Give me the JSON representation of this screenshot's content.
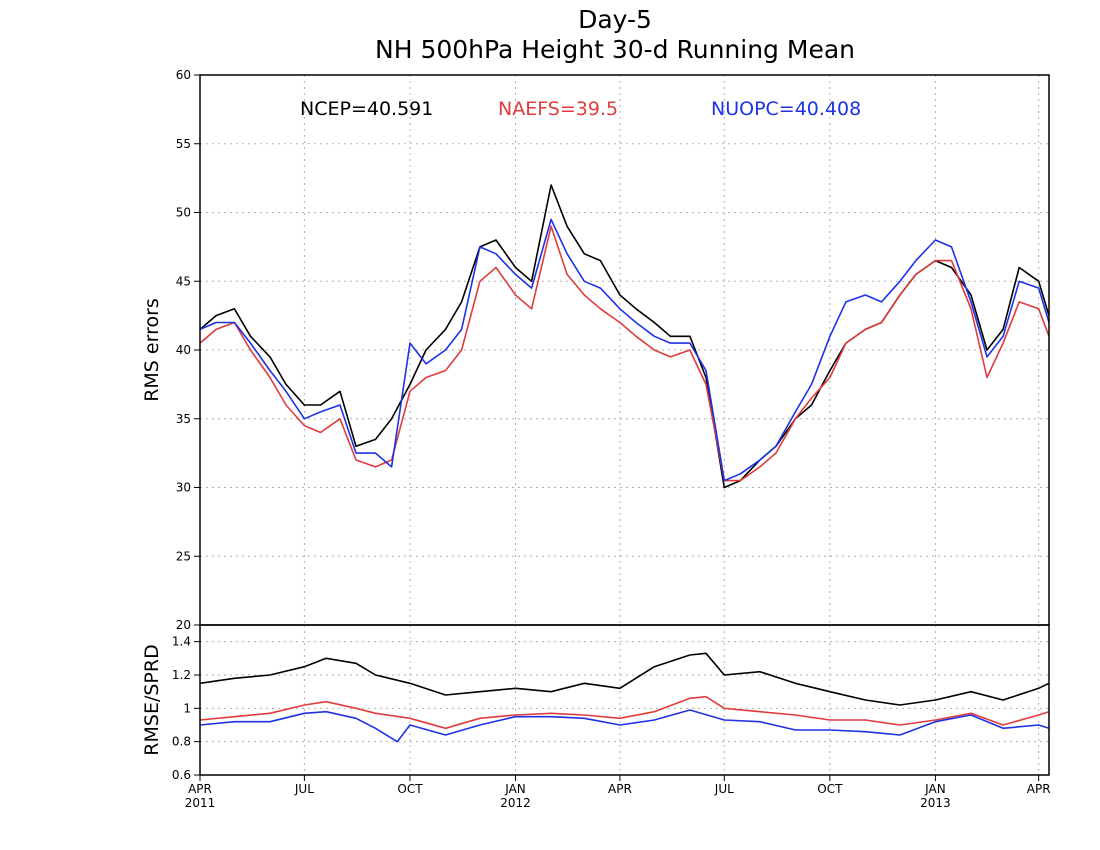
{
  "chart_data": [
    {
      "type": "line",
      "title": "Day-5",
      "subtitle": "NH 500hPa Height 30-d Running Mean",
      "ylabel": "RMS errors",
      "ylim": [
        20,
        60
      ],
      "yticks": [
        20,
        25,
        30,
        35,
        40,
        45,
        50,
        55,
        60
      ],
      "ytick_labels": [
        "20",
        "25",
        "30",
        "35",
        "40",
        "45",
        "50",
        "55",
        "60"
      ],
      "grid": true,
      "xlim": [
        "2011-04-01",
        "2013-04-10"
      ],
      "legend": [
        {
          "text": "NCEP=40.591",
          "color": "#000000"
        },
        {
          "text": "NAEFS=39.5",
          "color": "#e03c3c"
        },
        {
          "text": "NUOPC=40.408",
          "color": "#1e32e6"
        }
      ],
      "series": [
        {
          "name": "NCEP",
          "color": "#000000",
          "x": [
            "2011-04-01",
            "2011-04-15",
            "2011-05-01",
            "2011-05-15",
            "2011-06-01",
            "2011-06-15",
            "2011-07-01",
            "2011-07-15",
            "2011-08-01",
            "2011-08-15",
            "2011-09-01",
            "2011-09-15",
            "2011-10-01",
            "2011-10-15",
            "2011-11-01",
            "2011-11-15",
            "2011-12-01",
            "2011-12-15",
            "2012-01-01",
            "2012-01-15",
            "2012-02-01",
            "2012-02-15",
            "2012-03-01",
            "2012-03-15",
            "2012-04-01",
            "2012-04-15",
            "2012-05-01",
            "2012-05-15",
            "2012-06-01",
            "2012-06-15",
            "2012-07-01",
            "2012-07-15",
            "2012-08-01",
            "2012-08-15",
            "2012-09-01",
            "2012-09-15",
            "2012-10-01",
            "2012-10-15",
            "2012-11-01",
            "2012-11-15",
            "2012-12-01",
            "2012-12-15",
            "2013-01-01",
            "2013-01-15",
            "2013-02-01",
            "2013-02-15",
            "2013-03-01",
            "2013-03-15",
            "2013-04-01",
            "2013-04-10"
          ],
          "values": [
            41.5,
            42.5,
            43.0,
            41.0,
            39.5,
            37.5,
            36.0,
            36.0,
            37.0,
            33.0,
            33.5,
            35.0,
            37.5,
            40.0,
            41.5,
            43.5,
            47.5,
            48.0,
            46.0,
            45.0,
            52.0,
            49.0,
            47.0,
            46.5,
            44.0,
            43.0,
            42.0,
            41.0,
            41.0,
            38.0,
            30.0,
            30.5,
            32.0,
            33.0,
            35.0,
            36.0,
            38.5,
            40.5,
            41.5,
            42.0,
            44.0,
            45.5,
            46.5,
            46.0,
            44.0,
            40.0,
            41.5,
            46.0,
            45.0,
            42.5
          ]
        },
        {
          "name": "NAEFS",
          "color": "#e03c3c",
          "x": [
            "2011-04-01",
            "2011-04-15",
            "2011-05-01",
            "2011-05-15",
            "2011-06-01",
            "2011-06-15",
            "2011-07-01",
            "2011-07-15",
            "2011-08-01",
            "2011-08-15",
            "2011-09-01",
            "2011-09-15",
            "2011-10-01",
            "2011-10-15",
            "2011-11-01",
            "2011-11-15",
            "2011-12-01",
            "2011-12-15",
            "2012-01-01",
            "2012-01-15",
            "2012-02-01",
            "2012-02-15",
            "2012-03-01",
            "2012-03-15",
            "2012-04-01",
            "2012-04-15",
            "2012-05-01",
            "2012-05-15",
            "2012-06-01",
            "2012-06-15",
            "2012-07-01",
            "2012-07-15",
            "2012-08-01",
            "2012-08-15",
            "2012-09-01",
            "2012-09-15",
            "2012-10-01",
            "2012-10-15",
            "2012-11-01",
            "2012-11-15",
            "2012-12-01",
            "2012-12-15",
            "2013-01-01",
            "2013-01-15",
            "2013-02-01",
            "2013-02-15",
            "2013-03-01",
            "2013-03-15",
            "2013-04-01",
            "2013-04-10"
          ],
          "values": [
            40.5,
            41.5,
            42.0,
            40.0,
            38.0,
            36.0,
            34.5,
            34.0,
            35.0,
            32.0,
            31.5,
            32.0,
            37.0,
            38.0,
            38.5,
            40.0,
            45.0,
            46.0,
            44.0,
            43.0,
            49.0,
            45.5,
            44.0,
            43.0,
            42.0,
            41.0,
            40.0,
            39.5,
            40.0,
            37.5,
            30.5,
            30.5,
            31.5,
            32.5,
            35.0,
            36.5,
            38.0,
            40.5,
            41.5,
            42.0,
            44.0,
            45.5,
            46.5,
            46.5,
            43.0,
            38.0,
            40.5,
            43.5,
            43.0,
            41.0
          ]
        },
        {
          "name": "NUOPC",
          "color": "#1e32e6",
          "x": [
            "2011-04-01",
            "2011-04-15",
            "2011-05-01",
            "2011-05-15",
            "2011-06-01",
            "2011-06-15",
            "2011-07-01",
            "2011-07-15",
            "2011-08-01",
            "2011-08-15",
            "2011-09-01",
            "2011-09-15",
            "2011-10-01",
            "2011-10-15",
            "2011-11-01",
            "2011-11-15",
            "2011-12-01",
            "2011-12-15",
            "2012-01-01",
            "2012-01-15",
            "2012-02-01",
            "2012-02-15",
            "2012-03-01",
            "2012-03-15",
            "2012-04-01",
            "2012-04-15",
            "2012-05-01",
            "2012-05-15",
            "2012-06-01",
            "2012-06-15",
            "2012-07-01",
            "2012-07-15",
            "2012-08-01",
            "2012-08-15",
            "2012-09-01",
            "2012-09-15",
            "2012-10-01",
            "2012-10-15",
            "2012-11-01",
            "2012-11-15",
            "2012-12-01",
            "2012-12-15",
            "2013-01-01",
            "2013-01-15",
            "2013-02-01",
            "2013-02-15",
            "2013-03-01",
            "2013-03-15",
            "2013-04-01",
            "2013-04-10"
          ],
          "values": [
            41.5,
            42.0,
            42.0,
            40.5,
            38.5,
            37.0,
            35.0,
            35.5,
            36.0,
            32.5,
            32.5,
            31.5,
            40.5,
            39.0,
            40.0,
            41.5,
            47.5,
            47.0,
            45.5,
            44.5,
            49.5,
            47.0,
            45.0,
            44.5,
            43.0,
            42.0,
            41.0,
            40.5,
            40.5,
            38.5,
            30.5,
            31.0,
            32.0,
            33.0,
            35.5,
            37.5,
            41.0,
            43.5,
            44.0,
            43.5,
            45.0,
            46.5,
            48.0,
            47.5,
            43.5,
            39.5,
            41.0,
            45.0,
            44.5,
            42.0
          ]
        }
      ]
    },
    {
      "type": "line",
      "ylabel": "RMSE/SPRD",
      "ylim": [
        0.6,
        1.5
      ],
      "yticks": [
        0.6,
        0.8,
        1.0,
        1.2,
        1.4
      ],
      "ytick_labels": [
        "0.6",
        "0.8",
        "1",
        "1.2",
        "1.4"
      ],
      "grid": true,
      "xlim": [
        "2011-04-01",
        "2013-04-10"
      ],
      "xticks": [
        {
          "date": "2011-04-01",
          "month": "APR",
          "year": "2011"
        },
        {
          "date": "2011-07-01",
          "month": "JUL",
          "year": ""
        },
        {
          "date": "2011-10-01",
          "month": "OCT",
          "year": ""
        },
        {
          "date": "2012-01-01",
          "month": "JAN",
          "year": "2012"
        },
        {
          "date": "2012-04-01",
          "month": "APR",
          "year": ""
        },
        {
          "date": "2012-07-01",
          "month": "JUL",
          "year": ""
        },
        {
          "date": "2012-10-01",
          "month": "OCT",
          "year": ""
        },
        {
          "date": "2013-01-01",
          "month": "JAN",
          "year": "2013"
        },
        {
          "date": "2013-04-01",
          "month": "APR",
          "year": ""
        }
      ],
      "series": [
        {
          "name": "NCEP",
          "color": "#000000",
          "x": [
            "2011-04-01",
            "2011-05-01",
            "2011-06-01",
            "2011-07-01",
            "2011-07-20",
            "2011-08-15",
            "2011-09-01",
            "2011-10-01",
            "2011-11-01",
            "2011-12-01",
            "2012-01-01",
            "2012-02-01",
            "2012-03-01",
            "2012-04-01",
            "2012-05-01",
            "2012-06-01",
            "2012-06-15",
            "2012-07-01",
            "2012-08-01",
            "2012-09-01",
            "2012-10-01",
            "2012-11-01",
            "2012-12-01",
            "2013-01-01",
            "2013-02-01",
            "2013-03-01",
            "2013-04-01",
            "2013-04-10"
          ],
          "values": [
            1.15,
            1.18,
            1.2,
            1.25,
            1.3,
            1.27,
            1.2,
            1.15,
            1.08,
            1.1,
            1.12,
            1.1,
            1.15,
            1.12,
            1.25,
            1.32,
            1.33,
            1.2,
            1.22,
            1.15,
            1.1,
            1.05,
            1.02,
            1.05,
            1.1,
            1.05,
            1.12,
            1.15
          ]
        },
        {
          "name": "NAEFS",
          "color": "#e03c3c",
          "x": [
            "2011-04-01",
            "2011-05-01",
            "2011-06-01",
            "2011-07-01",
            "2011-07-20",
            "2011-08-15",
            "2011-09-01",
            "2011-10-01",
            "2011-11-01",
            "2011-12-01",
            "2012-01-01",
            "2012-02-01",
            "2012-03-01",
            "2012-04-01",
            "2012-05-01",
            "2012-06-01",
            "2012-06-15",
            "2012-07-01",
            "2012-08-01",
            "2012-09-01",
            "2012-10-01",
            "2012-11-01",
            "2012-12-01",
            "2013-01-01",
            "2013-02-01",
            "2013-03-01",
            "2013-04-01",
            "2013-04-10"
          ],
          "values": [
            0.93,
            0.95,
            0.97,
            1.02,
            1.04,
            1.0,
            0.97,
            0.94,
            0.88,
            0.94,
            0.96,
            0.97,
            0.96,
            0.94,
            0.98,
            1.06,
            1.07,
            1.0,
            0.98,
            0.96,
            0.93,
            0.93,
            0.9,
            0.93,
            0.97,
            0.9,
            0.96,
            0.98
          ]
        },
        {
          "name": "NUOPC",
          "color": "#1e32e6",
          "x": [
            "2011-04-01",
            "2011-05-01",
            "2011-06-01",
            "2011-07-01",
            "2011-07-20",
            "2011-08-15",
            "2011-09-01",
            "2011-09-20",
            "2011-10-01",
            "2011-11-01",
            "2011-12-01",
            "2012-01-01",
            "2012-02-01",
            "2012-03-01",
            "2012-04-01",
            "2012-05-01",
            "2012-06-01",
            "2012-07-01",
            "2012-08-01",
            "2012-09-01",
            "2012-10-01",
            "2012-11-01",
            "2012-12-01",
            "2013-01-01",
            "2013-02-01",
            "2013-03-01",
            "2013-04-01",
            "2013-04-10"
          ],
          "values": [
            0.9,
            0.92,
            0.92,
            0.97,
            0.98,
            0.94,
            0.88,
            0.8,
            0.9,
            0.84,
            0.9,
            0.95,
            0.95,
            0.94,
            0.9,
            0.93,
            0.99,
            0.93,
            0.92,
            0.87,
            0.87,
            0.86,
            0.84,
            0.92,
            0.96,
            0.88,
            0.9,
            0.88
          ]
        }
      ]
    }
  ]
}
